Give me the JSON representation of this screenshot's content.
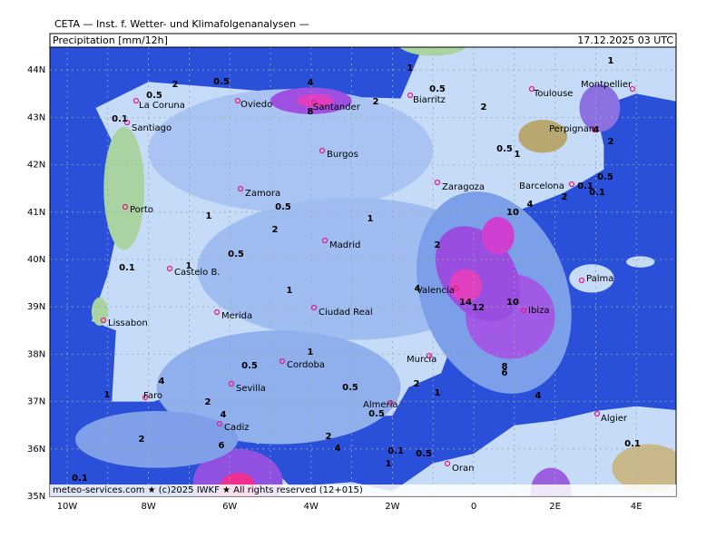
{
  "header": "CETA — Inst. f. Wetter- und Klimafolgenanalysen —",
  "panel_title": "Precipitation  [mm/12h]",
  "timestamp": "17.12.2025 03 UTC",
  "lat_labels": [
    "44N",
    "43N",
    "42N",
    "41N",
    "40N",
    "39N",
    "38N",
    "37N",
    "36N",
    "35N"
  ],
  "lon_labels": [
    "10W",
    "8W",
    "6W",
    "4W",
    "2W",
    "0",
    "2E",
    "4E"
  ],
  "cities": [
    "La Coruna",
    "Santiago",
    "Oviedo",
    "Santander",
    "Biarritz",
    "Toulouse",
    "Montpellier",
    "Perpignan",
    "Burgos",
    "Barcelona",
    "Zaragoza",
    "Zamora",
    "Porto",
    "Madrid",
    "Castelo B.",
    "Palma",
    "Valencia",
    "Merida",
    "Ciudad Real",
    "Lissabon",
    "Ibiza",
    "Murcia",
    "Cordoba",
    "Sevilla",
    "Faro",
    "Almeria",
    "Cadiz",
    "Algier",
    "Oran"
  ],
  "contour_labels": [
    "0.1",
    "0.5",
    "2",
    "0.5",
    "4",
    "8",
    "2",
    "0.5",
    "1",
    "2",
    "1",
    "4",
    "2",
    "0.5",
    "0.1",
    "0.5",
    "1",
    "0.1",
    "2",
    "10",
    "4",
    "1",
    "0.5",
    "1",
    "2",
    "2",
    "0.5",
    "0.1",
    "1",
    "4",
    "14",
    "12",
    "10",
    "1",
    "8",
    "6",
    "4",
    "1",
    "0.5",
    "0.5",
    "2",
    "1",
    "4",
    "1",
    "2",
    "4",
    "0.5",
    "6",
    "2",
    "4",
    "2",
    "0.1",
    "0.5",
    "1",
    "0.1",
    "0.1"
  ],
  "footer": "meteo-services.com ★ (c)2025 IWKF ★ All rights reserved (12+015)"
}
